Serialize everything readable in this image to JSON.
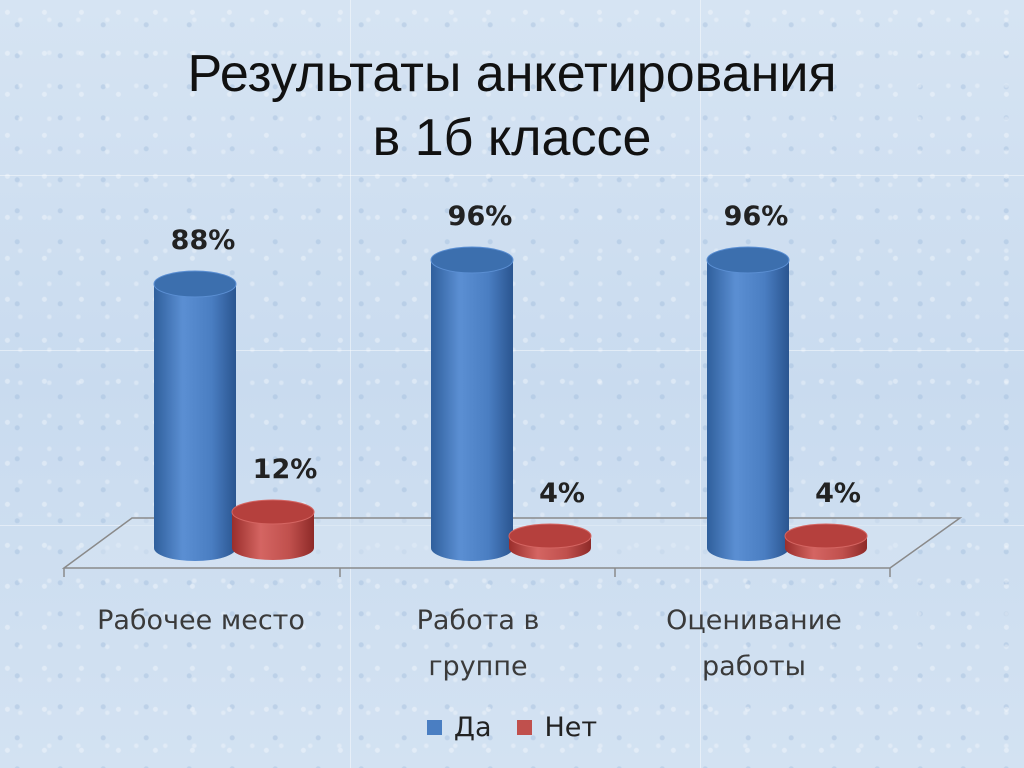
{
  "title": {
    "line1": "Результаты анкетирования",
    "line2": "в 1б классе"
  },
  "colors": {
    "yes": "#4a7ec2",
    "no": "#c0504d"
  },
  "chart_data": {
    "type": "bar",
    "title": "Результаты анкетирования в 1б классе",
    "categories": [
      [
        "Рабочее место"
      ],
      [
        "Работа в",
        "группе"
      ],
      [
        "Оценивание",
        "работы"
      ]
    ],
    "series": [
      {
        "name": "Да",
        "values": [
          88,
          96,
          96
        ],
        "labels": [
          "88%",
          "96%",
          "96%"
        ]
      },
      {
        "name": "Нет",
        "values": [
          12,
          4,
          4
        ],
        "labels": [
          "12%",
          "4%",
          "4%"
        ]
      }
    ],
    "ylim": [
      0,
      100
    ],
    "legend": "bottom",
    "grid": false
  }
}
